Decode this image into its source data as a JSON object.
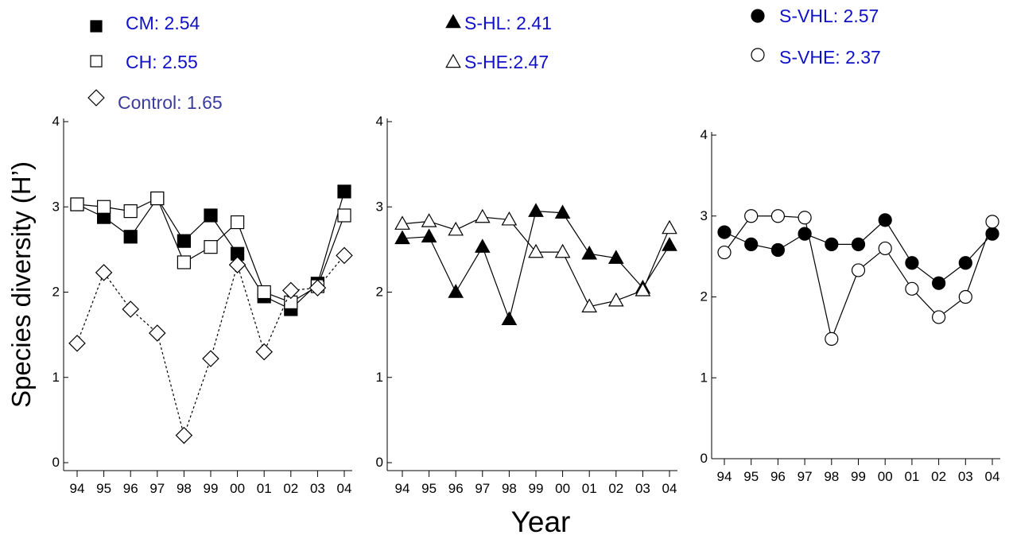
{
  "figure": {
    "ylabel": "Species diversity (H’)",
    "xlabel": "Year"
  },
  "chart_data": [
    {
      "type": "line",
      "categories": [
        "94",
        "95",
        "96",
        "97",
        "98",
        "99",
        "00",
        "01",
        "02",
        "03",
        "04"
      ],
      "ylim": [
        0,
        4
      ],
      "yticks": [
        0,
        1,
        2,
        3,
        4
      ],
      "grid": false,
      "legend_placement": "top",
      "series": [
        {
          "name": "CM",
          "legend_label": "CM: 2.54",
          "marker": "square",
          "fill": "#000000",
          "line": "solid",
          "label_color": "#1010c8",
          "values": [
            3.03,
            2.88,
            2.65,
            3.1,
            2.6,
            2.9,
            2.45,
            1.95,
            1.8,
            2.1,
            3.18
          ]
        },
        {
          "name": "CH",
          "legend_label": "CH: 2.55",
          "marker": "square",
          "fill": "#ffffff",
          "line": "solid",
          "label_color": "#1010c8",
          "values": [
            3.03,
            3.0,
            2.95,
            3.1,
            2.35,
            2.53,
            2.82,
            2.0,
            1.88,
            2.07,
            2.9
          ]
        },
        {
          "name": "Control",
          "legend_label": "Control: 1.65",
          "marker": "diamond",
          "fill": "#ffffff",
          "line": "dashed",
          "label_color": "#3c3ca0",
          "values": [
            1.4,
            2.23,
            1.8,
            1.52,
            0.32,
            1.22,
            2.32,
            1.3,
            2.02,
            2.05,
            2.43
          ]
        }
      ]
    },
    {
      "type": "line",
      "categories": [
        "94",
        "95",
        "96",
        "97",
        "98",
        "99",
        "00",
        "01",
        "02",
        "03",
        "04"
      ],
      "ylim": [
        0,
        4
      ],
      "yticks": [
        0,
        1,
        2,
        3,
        4
      ],
      "grid": false,
      "legend_placement": "top",
      "series": [
        {
          "name": "S-HL",
          "legend_label": "S-HL: 2.41",
          "marker": "triangle",
          "fill": "#000000",
          "line": "solid",
          "label_color": "#1010c8",
          "values": [
            2.63,
            2.65,
            2.0,
            2.53,
            1.68,
            2.95,
            2.93,
            2.45,
            2.4,
            2.05,
            2.55
          ]
        },
        {
          "name": "S-HE",
          "legend_label": "S-HE:2.47",
          "marker": "triangle",
          "fill": "#ffffff",
          "line": "solid",
          "label_color": "#1010c8",
          "values": [
            2.8,
            2.83,
            2.73,
            2.88,
            2.85,
            2.47,
            2.47,
            1.83,
            1.9,
            2.02,
            2.75
          ]
        }
      ]
    },
    {
      "type": "line",
      "categories": [
        "94",
        "95",
        "96",
        "97",
        "98",
        "99",
        "00",
        "01",
        "02",
        "03",
        "04"
      ],
      "ylim": [
        0,
        4
      ],
      "yticks": [
        0,
        1,
        2,
        3,
        4
      ],
      "grid": false,
      "legend_placement": "top",
      "series": [
        {
          "name": "S-VHL",
          "legend_label": "S-VHL: 2.57",
          "marker": "circle",
          "fill": "#000000",
          "line": "solid",
          "label_color": "#1010c8",
          "values": [
            2.8,
            2.65,
            2.58,
            2.78,
            2.65,
            2.65,
            2.95,
            2.42,
            2.17,
            2.42,
            2.78
          ]
        },
        {
          "name": "S-VHE",
          "legend_label": "S-VHE: 2.37",
          "marker": "circle",
          "fill": "#ffffff",
          "line": "solid",
          "label_color": "#1010c8",
          "values": [
            2.55,
            3.0,
            3.0,
            2.98,
            1.48,
            2.33,
            2.6,
            2.1,
            1.75,
            2.0,
            2.93
          ]
        }
      ]
    }
  ]
}
